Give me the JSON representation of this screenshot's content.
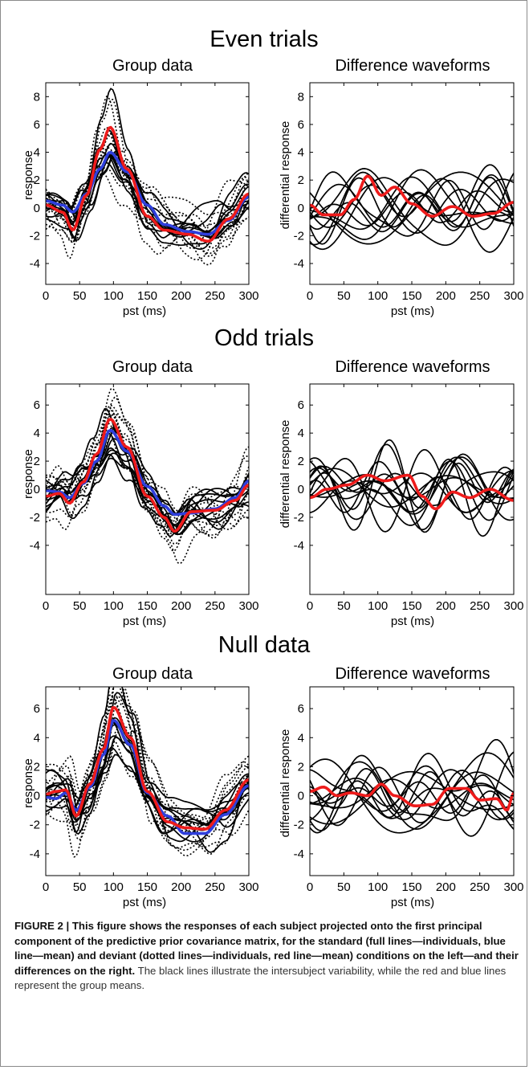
{
  "sections": [
    {
      "title": "Even trials",
      "group_title": "Group data",
      "diff_title": "Difference waveforms",
      "group_ylabel": "response",
      "diff_ylabel": "differential response",
      "xlabel": "pst (ms)"
    },
    {
      "title": "Odd trials",
      "group_title": "Group data",
      "diff_title": "Difference waveforms",
      "group_ylabel": "response",
      "diff_ylabel": "differential response",
      "xlabel": "pst (ms)"
    },
    {
      "title": "Null data",
      "group_title": "Group data",
      "diff_title": "Difference waveforms",
      "group_ylabel": "response",
      "diff_ylabel": "differential response",
      "xlabel": "pst (ms)"
    }
  ],
  "caption": {
    "bold": "FIGURE 2 | This figure shows the responses of each subject projected onto the first principal component of the predictive prior covariance matrix, for the standard (full lines—individuals, blue line—mean) and deviant (dotted lines—individuals, red line—mean) conditions on the left—and their differences on the right.",
    "normal": " The black lines illustrate the intersubject variability, while the red and blue lines represent the group means."
  },
  "colors": {
    "individual": "#000000",
    "standard_mean": "#2f3fdc",
    "deviant_mean": "#ee1b1b"
  },
  "chart_data": [
    {
      "type": "line",
      "panel": "Even trials – Group data",
      "title": "Group data",
      "xlabel": "pst (ms)",
      "ylabel": "response",
      "xlim": [
        0,
        300
      ],
      "ylim": [
        -5.5,
        9
      ],
      "xticks": [
        0,
        50,
        100,
        150,
        200,
        250,
        300
      ],
      "yticks": [
        -4,
        -2,
        0,
        2,
        4,
        6,
        8
      ],
      "x": [
        0,
        25,
        40,
        60,
        80,
        95,
        120,
        150,
        175,
        210,
        240,
        270,
        300
      ],
      "series": [
        {
          "values": [
            0.2,
            -0.3,
            -1.6,
            0.9,
            4.2,
            5.8,
            2.8,
            -0.6,
            -1.6,
            -1.9,
            -2.4,
            -0.8,
            1.0
          ]
        },
        {
          "values": [
            0.5,
            0.2,
            -0.3,
            1.0,
            2.8,
            4.0,
            2.6,
            0.2,
            -1.2,
            -1.7,
            -1.9,
            -0.9,
            0.8
          ]
        }
      ]
    },
    {
      "type": "line",
      "panel": "Even trials – Difference waveforms",
      "title": "Difference waveforms",
      "xlabel": "pst (ms)",
      "ylabel": "differential response",
      "xlim": [
        0,
        300
      ],
      "ylim": [
        -5.5,
        9
      ],
      "xticks": [
        0,
        50,
        100,
        150,
        200,
        250,
        300
      ],
      "yticks": [
        -4,
        -2,
        0,
        2,
        4,
        6,
        8
      ],
      "x": [
        0,
        20,
        45,
        65,
        85,
        105,
        125,
        150,
        180,
        210,
        240,
        270,
        300
      ],
      "series": [
        {
          "values": [
            0.2,
            -0.5,
            -0.5,
            0.6,
            2.3,
            0.9,
            1.5,
            0.3,
            -0.6,
            0.1,
            -0.6,
            -0.4,
            0.4
          ]
        }
      ]
    },
    {
      "type": "line",
      "panel": "Odd trials – Group data",
      "title": "Group data",
      "xlabel": "pst (ms)",
      "ylabel": "response",
      "xlim": [
        0,
        300
      ],
      "ylim": [
        -7.5,
        7.5
      ],
      "xticks": [
        0,
        50,
        100,
        150,
        200,
        250,
        300
      ],
      "yticks": [
        -4,
        -2,
        0,
        2,
        4,
        6
      ],
      "x": [
        0,
        20,
        35,
        55,
        75,
        95,
        120,
        150,
        175,
        190,
        215,
        250,
        280,
        300
      ],
      "series": [
        {
          "values": [
            -0.5,
            -0.3,
            -1.0,
            0.5,
            2.5,
            5.0,
            3.0,
            -0.5,
            -2.0,
            -3.0,
            -1.6,
            -1.5,
            -0.8,
            0.3
          ]
        },
        {
          "values": [
            -0.1,
            -0.2,
            -0.6,
            0.4,
            2.0,
            4.2,
            2.7,
            0.2,
            -1.2,
            -1.8,
            -1.7,
            -1.4,
            -0.6,
            0.6
          ]
        }
      ]
    },
    {
      "type": "line",
      "panel": "Odd trials – Difference waveforms",
      "title": "Difference waveforms",
      "xlabel": "pst (ms)",
      "ylabel": "differential response",
      "xlim": [
        0,
        300
      ],
      "ylim": [
        -7.5,
        7.5
      ],
      "xticks": [
        0,
        50,
        100,
        150,
        200,
        250,
        300
      ],
      "yticks": [
        -4,
        -2,
        0,
        2,
        4,
        6
      ],
      "x": [
        0,
        25,
        55,
        85,
        110,
        145,
        165,
        185,
        210,
        235,
        265,
        300
      ],
      "series": [
        {
          "values": [
            -0.6,
            0.0,
            0.3,
            1.0,
            0.6,
            1.0,
            -0.5,
            -1.4,
            -0.2,
            -0.6,
            0.0,
            -0.8
          ]
        }
      ]
    },
    {
      "type": "line",
      "panel": "Null data – Group data",
      "title": "Group data",
      "xlabel": "pst (ms)",
      "ylabel": "response",
      "xlim": [
        0,
        300
      ],
      "ylim": [
        -5.5,
        7.5
      ],
      "xticks": [
        0,
        50,
        100,
        150,
        200,
        250,
        300
      ],
      "yticks": [
        -4,
        -2,
        0,
        2,
        4,
        6
      ],
      "x": [
        0,
        15,
        30,
        45,
        65,
        85,
        100,
        125,
        150,
        180,
        205,
        235,
        265,
        300
      ],
      "series": [
        {
          "values": [
            0.1,
            0.3,
            0.4,
            -1.4,
            0.8,
            3.2,
            6.1,
            4.0,
            0.3,
            -1.8,
            -2.2,
            -2.3,
            -1.0,
            1.1
          ]
        },
        {
          "values": [
            -0.1,
            -0.2,
            0.2,
            -1.0,
            0.6,
            2.8,
            5.2,
            3.5,
            0.2,
            -1.4,
            -2.6,
            -2.6,
            -1.3,
            0.7
          ]
        }
      ]
    },
    {
      "type": "line",
      "panel": "Null data – Difference waveforms",
      "title": "Difference waveforms",
      "xlabel": "pst (ms)",
      "ylabel": "differential response",
      "xlim": [
        0,
        300
      ],
      "ylim": [
        -5.5,
        7.5
      ],
      "xticks": [
        0,
        50,
        100,
        150,
        200,
        250,
        300
      ],
      "yticks": [
        -4,
        -2,
        0,
        2,
        4,
        6
      ],
      "x": [
        0,
        20,
        40,
        60,
        85,
        105,
        125,
        155,
        180,
        205,
        230,
        250,
        275,
        290,
        300
      ],
      "series": [
        {
          "values": [
            0.3,
            0.6,
            0.0,
            0.2,
            0.0,
            0.8,
            0.0,
            -0.7,
            -0.6,
            0.5,
            0.5,
            -0.3,
            -0.2,
            -1.0,
            0.2
          ]
        }
      ]
    }
  ]
}
